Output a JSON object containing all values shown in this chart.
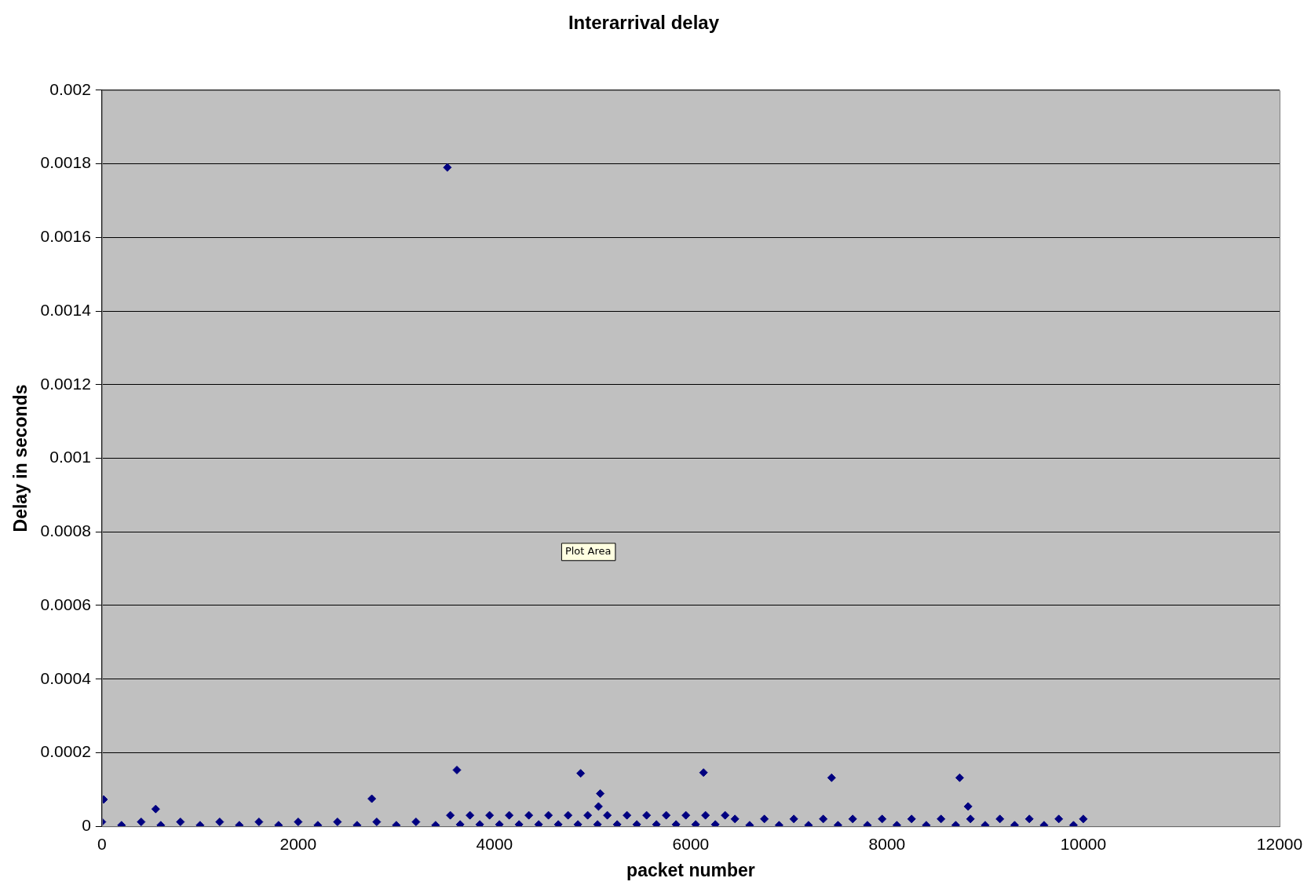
{
  "chart_data": {
    "type": "scatter",
    "title": "Interarrival delay",
    "xlabel": "packet number",
    "ylabel": "Delay in seconds",
    "annotations": [
      "Plot Area"
    ],
    "xlim": [
      0,
      12000
    ],
    "xticks": [
      0,
      2000,
      4000,
      6000,
      8000,
      10000,
      12000
    ],
    "ylim": [
      0,
      0.002
    ],
    "yticks": [
      0,
      0.0002,
      0.0004,
      0.0006,
      0.0008,
      0.001,
      0.0012,
      0.0014,
      0.0016,
      0.0018,
      0.002
    ],
    "grid": "y",
    "legend": false,
    "marker": "diamond",
    "series": [
      {
        "color": "#000080",
        "x": [
          0,
          200,
          400,
          600,
          800,
          1000,
          1200,
          1400,
          1600,
          1800,
          2000,
          2200,
          2400,
          2600,
          2800,
          3000,
          3200,
          3400,
          3550,
          3650,
          3750,
          3850,
          3950,
          4050,
          4150,
          4250,
          4350,
          4450,
          4550,
          4650,
          4750,
          4850,
          4950,
          5050,
          5150,
          5250,
          5350,
          5450,
          5550,
          5650,
          5750,
          5850,
          5950,
          6050,
          6150,
          6250,
          6350,
          6450,
          6600,
          6750,
          6900,
          7050,
          7200,
          7350,
          7500,
          7650,
          7800,
          7950,
          8100,
          8250,
          8400,
          8550,
          8700,
          8850,
          9000,
          9150,
          9300,
          9450,
          9600,
          9750,
          9900,
          10000,
          17,
          548,
          2750,
          3520,
          3617,
          4878,
          5078,
          5060,
          6130,
          7435,
          8740,
          8826
        ],
        "values": [
          1.2e-05,
          3e-06,
          1.2e-05,
          3e-06,
          1.2e-05,
          3e-06,
          1.2e-05,
          3e-06,
          1.2e-05,
          3e-06,
          1.2e-05,
          3e-06,
          1.2e-05,
          3e-06,
          1.2e-05,
          3e-06,
          1.2e-05,
          3e-06,
          3e-05,
          5e-06,
          3e-05,
          5e-06,
          3e-05,
          5e-06,
          3e-05,
          5e-06,
          3e-05,
          5e-06,
          3e-05,
          5e-06,
          3e-05,
          5e-06,
          3e-05,
          5e-06,
          3e-05,
          5e-06,
          3e-05,
          5e-06,
          3e-05,
          5e-06,
          3e-05,
          5e-06,
          3e-05,
          5e-06,
          3e-05,
          5e-06,
          3e-05,
          2e-05,
          3e-06,
          2e-05,
          3e-06,
          2e-05,
          3e-06,
          2e-05,
          3e-06,
          2e-05,
          3e-06,
          2e-05,
          3e-06,
          2e-05,
          3e-06,
          2e-05,
          3e-06,
          2e-05,
          3e-06,
          2e-05,
          3e-06,
          2e-05,
          3e-06,
          2e-05,
          3e-06,
          2e-05,
          7.3e-05,
          4.7e-05,
          7.5e-05,
          0.00179,
          0.000153,
          0.000144,
          8.9e-05,
          5.4e-05,
          0.000146,
          0.000132,
          0.000132,
          5.4e-05
        ]
      }
    ]
  }
}
